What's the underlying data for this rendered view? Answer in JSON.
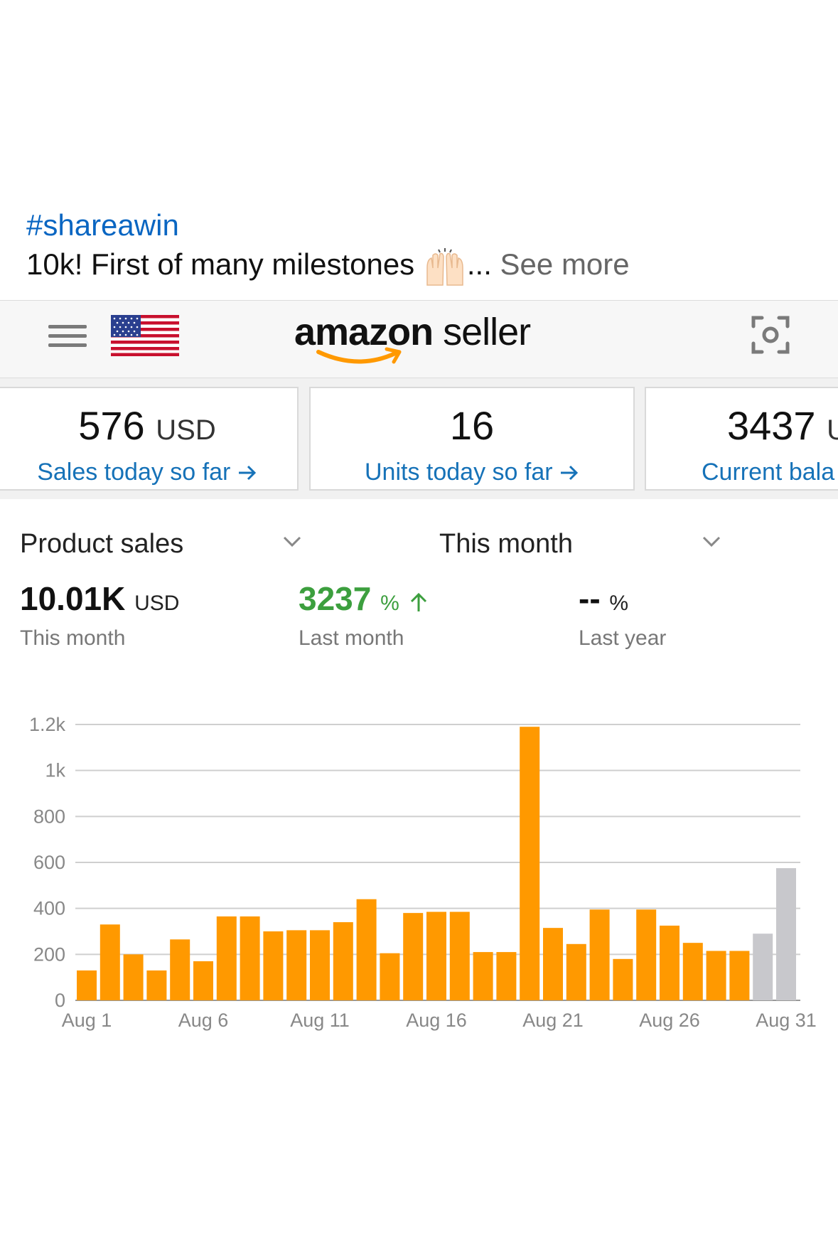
{
  "post": {
    "hashtag": "#shareawin",
    "caption": "10k! First of many milestones",
    "ellipsis": "...",
    "see_more": "See more",
    "emoji_icon": "raising-hands-icon"
  },
  "app": {
    "logo_brand": "amazon",
    "logo_suffix": "seller",
    "icons": [
      "menu-icon",
      "us-flag-icon",
      "camera-scan-icon"
    ]
  },
  "stats": [
    {
      "value": "576",
      "unit": "USD",
      "label": "Sales today so far"
    },
    {
      "value": "16",
      "unit": "",
      "label": "Units today so far"
    },
    {
      "value": "3437",
      "unit": "U",
      "label": "Current bala"
    }
  ],
  "selectors": {
    "metric": "Product sales",
    "period": "This month"
  },
  "summary": {
    "this_month": {
      "value": "10.01K",
      "unit": "USD",
      "label": "This month"
    },
    "last_month": {
      "value": "3237",
      "unit": "%",
      "label": "Last month"
    },
    "last_year": {
      "value": "--",
      "unit": "%",
      "label": "Last year"
    }
  },
  "colors": {
    "accent_orange": "#ff9900",
    "projected_gray": "#c8c8cc",
    "link_blue": "#1672b8",
    "positive_green": "#3c9f3e"
  },
  "chart_data": {
    "type": "bar",
    "categories": [
      "Aug 1",
      "Aug 2",
      "Aug 3",
      "Aug 4",
      "Aug 5",
      "Aug 6",
      "Aug 7",
      "Aug 8",
      "Aug 9",
      "Aug 10",
      "Aug 11",
      "Aug 12",
      "Aug 13",
      "Aug 14",
      "Aug 15",
      "Aug 16",
      "Aug 17",
      "Aug 18",
      "Aug 19",
      "Aug 20",
      "Aug 21",
      "Aug 22",
      "Aug 23",
      "Aug 24",
      "Aug 25",
      "Aug 26",
      "Aug 27",
      "Aug 28",
      "Aug 29",
      "Aug 30",
      "Aug 31"
    ],
    "x_tick_labels": [
      "Aug 1",
      "Aug 6",
      "Aug 11",
      "Aug 16",
      "Aug 21",
      "Aug 26",
      "Aug 31"
    ],
    "series": [
      {
        "values": [
          130,
          330,
          200,
          130,
          265,
          170,
          365,
          365,
          300,
          305,
          305,
          340,
          440,
          205,
          380,
          385,
          385,
          210,
          210,
          1190,
          315,
          245,
          395,
          180,
          395,
          325,
          250,
          215,
          215,
          290,
          575
        ]
      }
    ],
    "projected_from": "Aug 30",
    "y_ticks": [
      "0",
      "200",
      "400",
      "600",
      "800",
      "1k",
      "1.2k"
    ],
    "ylim": [
      0,
      1200
    ],
    "grid": true,
    "legend": "none"
  }
}
